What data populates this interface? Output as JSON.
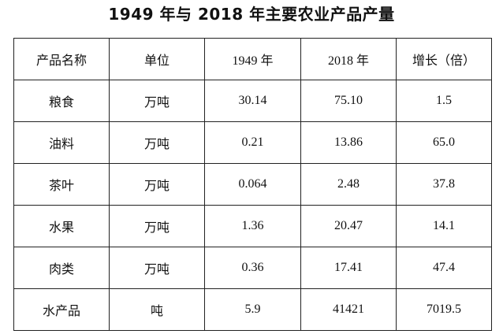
{
  "title": "1949 年与 2018 年主要农业产品产量",
  "headers": [
    "产品名称",
    "单位",
    "1949 年",
    "2018 年",
    "增长（倍）"
  ],
  "rows": [
    {
      "product": "粮食",
      "unit": "万吨",
      "y1949": "30.14",
      "y2018": "75.10",
      "growth": "1.5"
    },
    {
      "product": "油料",
      "unit": "万吨",
      "y1949": "0.21",
      "y2018": "13.86",
      "growth": "65.0"
    },
    {
      "product": "茶叶",
      "unit": "万吨",
      "y1949": "0.064",
      "y2018": "2.48",
      "growth": "37.8"
    },
    {
      "product": "水果",
      "unit": "万吨",
      "y1949": "1.36",
      "y2018": "20.47",
      "growth": "14.1"
    },
    {
      "product": "肉类",
      "unit": "万吨",
      "y1949": "0.36",
      "y2018": "17.41",
      "growth": "47.4"
    },
    {
      "product": "水产品",
      "unit": "吨",
      "y1949": "5.9",
      "y2018": "41421",
      "growth": "7019.5"
    }
  ]
}
